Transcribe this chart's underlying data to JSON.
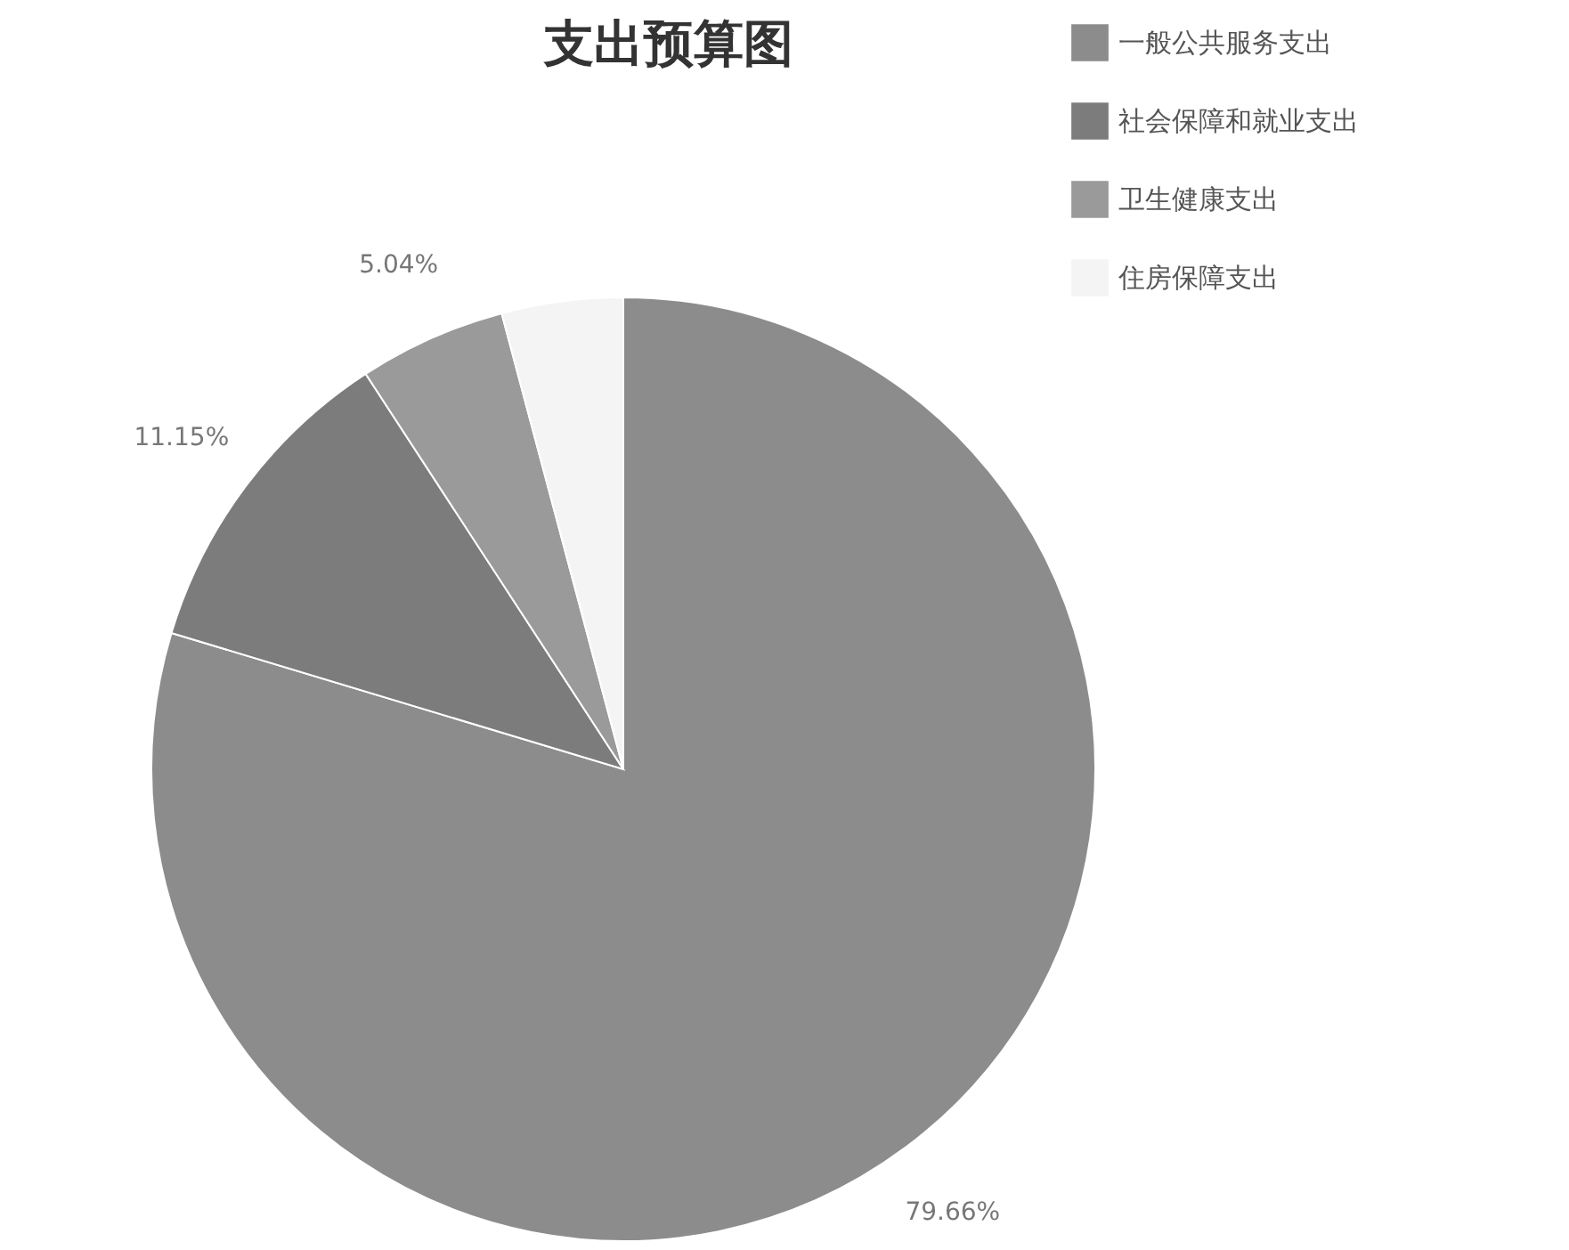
{
  "chart_data": {
    "type": "pie",
    "title": "支出预算图",
    "categories": [
      "一般公共服务支出",
      "社会保障和就业支出",
      "卫生健康支出",
      "住房保障支出"
    ],
    "values": [
      79.66,
      11.15,
      5.04,
      4.15
    ],
    "value_labels": [
      "79.66%",
      "11.15%",
      "5.04%",
      null
    ],
    "colors": [
      "#8c8c8c",
      "#7c7c7c",
      "#9a9a9a",
      "#f4f4f4"
    ],
    "legend": "top right"
  }
}
